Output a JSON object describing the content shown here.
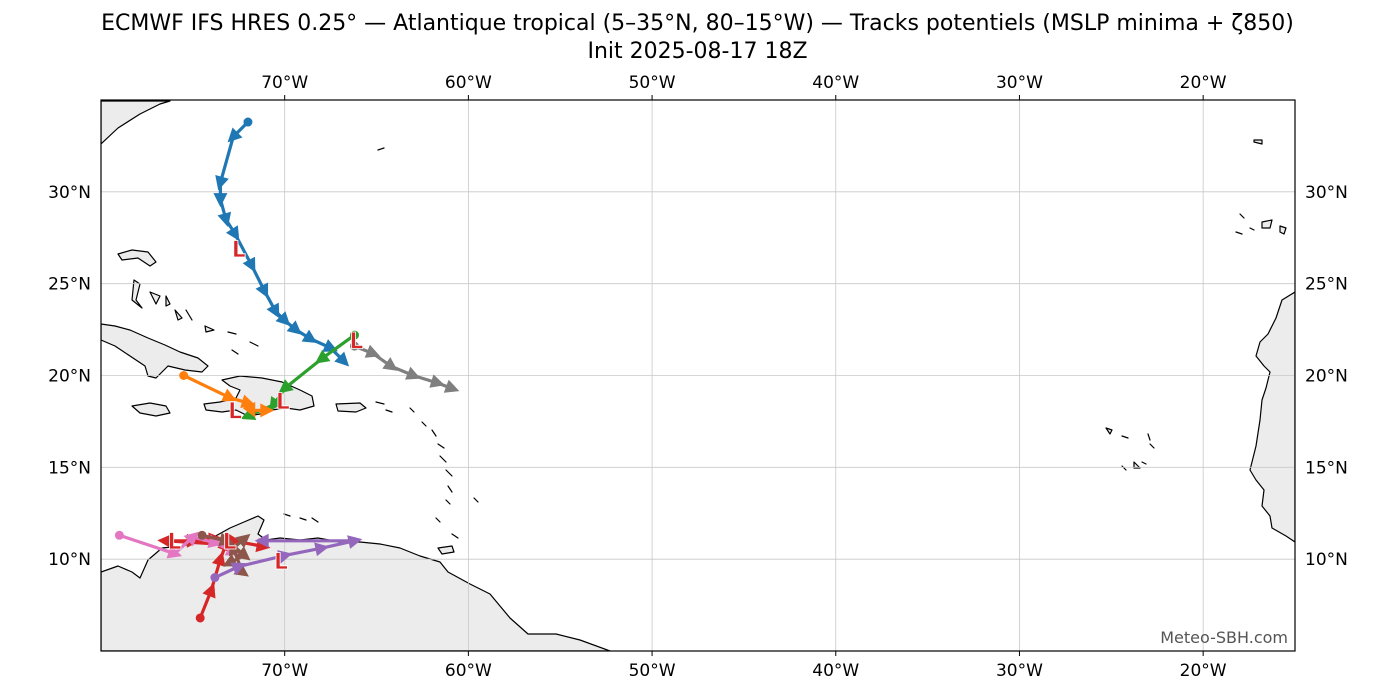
{
  "title": {
    "line1": "ECMWF IFS HRES 0.25° — Atlantique tropical (5–35°N, 80–15°W) — Tracks potentiels (MSLP minima + ζ850)",
    "line2": "Init 2025-08-17 18Z"
  },
  "credit": "Meteo-SBH.com",
  "map": {
    "lon_range": [
      -80,
      -15
    ],
    "lat_range": [
      5,
      35
    ],
    "gridlines": true,
    "land_color": "#ececec",
    "coast_color": "#000000",
    "grid_color": "#c8c8c8"
  },
  "ticks": {
    "lon": [
      {
        "value": -70,
        "label": "70°W"
      },
      {
        "value": -60,
        "label": "60°W"
      },
      {
        "value": -50,
        "label": "50°W"
      },
      {
        "value": -40,
        "label": "40°W"
      },
      {
        "value": -30,
        "label": "30°W"
      },
      {
        "value": -20,
        "label": "20°W"
      }
    ],
    "lat": [
      {
        "value": 30,
        "label": "30°N"
      },
      {
        "value": 25,
        "label": "25°N"
      },
      {
        "value": 20,
        "label": "20°N"
      },
      {
        "value": 15,
        "label": "15°N"
      },
      {
        "value": 10,
        "label": "10°N"
      }
    ]
  },
  "chart_data": {
    "type": "scatter",
    "title": "ECMWF IFS HRES 0.25° — Atlantique tropical (5–35°N, 80–15°W) — Tracks potentiels (MSLP minima + ζ850)",
    "subtitle": "Init 2025-08-17 18Z",
    "xlim": [
      -80,
      -15
    ],
    "ylim": [
      5,
      35
    ],
    "low_marker": "L",
    "low_color": "#d62728",
    "tracks": [
      {
        "color": "#1f77b4",
        "points": [
          [
            -72.0,
            33.8
          ],
          [
            -72.8,
            33.0
          ],
          [
            -73.5,
            30.5
          ],
          [
            -73.5,
            29.6
          ],
          [
            -73.2,
            28.5
          ],
          [
            -72.7,
            27.7
          ],
          [
            -71.8,
            26.0
          ],
          [
            -71.1,
            24.6
          ],
          [
            -70.5,
            23.5
          ],
          [
            -70.0,
            23.0
          ],
          [
            -69.4,
            22.5
          ],
          [
            -68.6,
            22.0
          ],
          [
            -67.5,
            21.5
          ],
          [
            -66.8,
            20.8
          ]
        ]
      },
      {
        "color": "#7f7f7f",
        "points": [
          [
            -66.2,
            21.6
          ],
          [
            -65.2,
            21.2
          ],
          [
            -64.2,
            20.5
          ],
          [
            -63.0,
            20.0
          ],
          [
            -61.7,
            19.6
          ],
          [
            -60.9,
            19.3
          ]
        ]
      },
      {
        "color": "#2ca02c",
        "points": [
          [
            -66.2,
            22.2
          ],
          [
            -68.0,
            20.9
          ],
          [
            -70.0,
            19.3
          ],
          [
            -70.6,
            18.4
          ],
          [
            -72.0,
            17.8
          ]
        ]
      },
      {
        "color": "#ff7f0e",
        "points": [
          [
            -75.5,
            20.0
          ],
          [
            -73.0,
            18.8
          ],
          [
            -72.0,
            18.5
          ],
          [
            -71.8,
            18.1
          ],
          [
            -71.0,
            18.1
          ]
        ]
      },
      {
        "color": "#d62728",
        "points": [
          [
            -74.6,
            6.8
          ],
          [
            -74.0,
            8.3
          ],
          [
            -73.5,
            10.0
          ],
          [
            -73.2,
            10.8
          ],
          [
            -76.5,
            11.0
          ],
          [
            -75.0,
            11.0
          ],
          [
            -73.8,
            11.1
          ],
          [
            -72.8,
            11.0
          ],
          [
            -71.2,
            10.7
          ]
        ]
      },
      {
        "color": "#e377c2",
        "points": [
          [
            -79.0,
            11.3
          ],
          [
            -76.0,
            10.3
          ],
          [
            -75.0,
            11.2
          ],
          [
            -73.8,
            10.9
          ],
          [
            -72.8,
            10.4
          ]
        ]
      },
      {
        "color": "#8c564b",
        "points": [
          [
            -74.5,
            11.3
          ],
          [
            -73.2,
            11.0
          ],
          [
            -72.2,
            10.2
          ],
          [
            -73.0,
            9.8
          ],
          [
            -72.3,
            9.3
          ],
          [
            -72.8,
            10.6
          ],
          [
            -72.2,
            11.1
          ]
        ]
      },
      {
        "color": "#9467bd",
        "points": [
          [
            -73.8,
            9.0
          ],
          [
            -72.5,
            9.6
          ],
          [
            -70.0,
            10.2
          ],
          [
            -68.0,
            10.6
          ],
          [
            -66.2,
            11.0
          ],
          [
            -71.2,
            11.0
          ]
        ]
      }
    ],
    "lows": [
      [
        -72.5,
        26.9
      ],
      [
        -66.1,
        21.9
      ],
      [
        -70.1,
        18.6
      ],
      [
        -72.7,
        18.1
      ],
      [
        -76.0,
        11.0
      ],
      [
        -73.0,
        11.0
      ],
      [
        -70.2,
        9.9
      ]
    ]
  }
}
